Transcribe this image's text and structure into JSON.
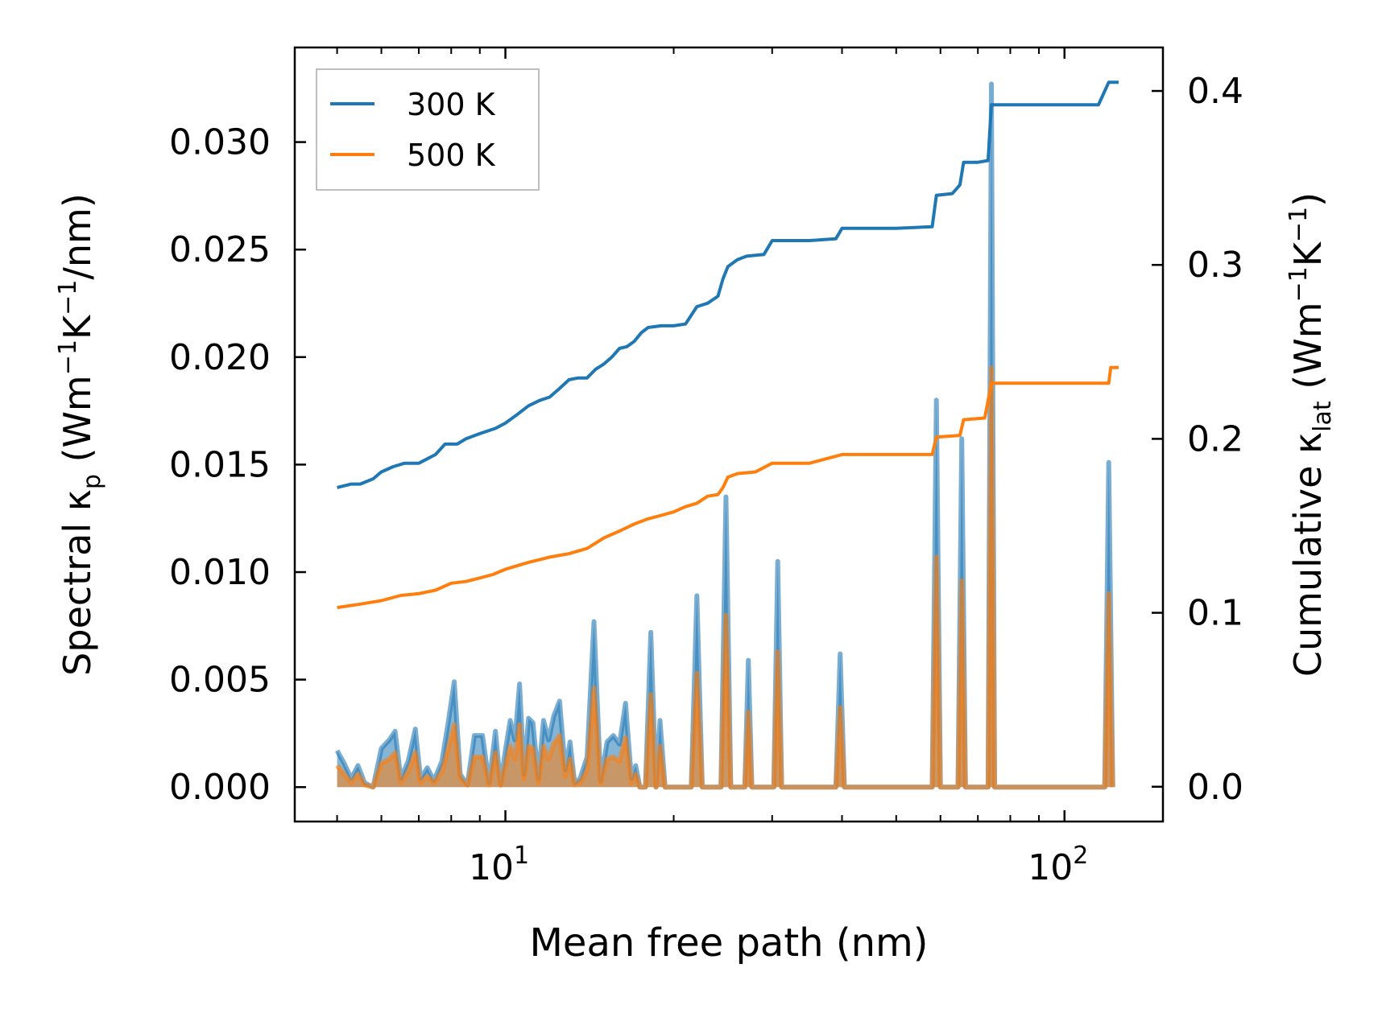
{
  "chart_data": {
    "type": "line",
    "xlabel": "Mean free path (nm)",
    "ylabel_left": "Spectral κp (Wm−1K−1/nm)",
    "ylabel_right": "Cumulative κlat (Wm−1K−1)",
    "xscale": "log",
    "xlim": [
      4.2,
      150
    ],
    "ylim_left": [
      -0.0016,
      0.0344
    ],
    "ylim_right": [
      -0.02,
      0.425
    ],
    "left_ticks": [
      "0.000",
      "0.005",
      "0.010",
      "0.015",
      "0.020",
      "0.025",
      "0.030"
    ],
    "right_ticks": [
      "0.0",
      "0.1",
      "0.2",
      "0.3",
      "0.4"
    ],
    "x_tick_labels": [
      "10",
      "10"
    ],
    "x_tick_exponents": [
      "1",
      "2"
    ],
    "legend": {
      "position": "top-left",
      "entries": [
        "300 K",
        "500 K"
      ]
    },
    "series_colors": {
      "300 K": "#1f77b4",
      "500 K": "#ff7f0e"
    },
    "cumulative": [
      {
        "name": "300 K",
        "points": [
          [
            5,
            0.172
          ],
          [
            5.3,
            0.174
          ],
          [
            5.5,
            0.174
          ],
          [
            5.8,
            0.177
          ],
          [
            6.0,
            0.181
          ],
          [
            6.3,
            0.184
          ],
          [
            6.6,
            0.186
          ],
          [
            7.0,
            0.186
          ],
          [
            7.2,
            0.188
          ],
          [
            7.5,
            0.191
          ],
          [
            7.8,
            0.197
          ],
          [
            8.2,
            0.197
          ],
          [
            8.5,
            0.2
          ],
          [
            9.0,
            0.203
          ],
          [
            9.6,
            0.206
          ],
          [
            10,
            0.209
          ],
          [
            10.5,
            0.214
          ],
          [
            11,
            0.219
          ],
          [
            11.5,
            0.222
          ],
          [
            12,
            0.224
          ],
          [
            12.5,
            0.229
          ],
          [
            13,
            0.234
          ],
          [
            13.5,
            0.235
          ],
          [
            14,
            0.235
          ],
          [
            14.5,
            0.24
          ],
          [
            15,
            0.243
          ],
          [
            15.5,
            0.247
          ],
          [
            16,
            0.252
          ],
          [
            16.5,
            0.253
          ],
          [
            17,
            0.256
          ],
          [
            17.5,
            0.261
          ],
          [
            18,
            0.264
          ],
          [
            19,
            0.265
          ],
          [
            20,
            0.265
          ],
          [
            21,
            0.266
          ],
          [
            22,
            0.276
          ],
          [
            23,
            0.278
          ],
          [
            24,
            0.282
          ],
          [
            24.5,
            0.292
          ],
          [
            25,
            0.299
          ],
          [
            26,
            0.303
          ],
          [
            27,
            0.305
          ],
          [
            29,
            0.306
          ],
          [
            30,
            0.314
          ],
          [
            35,
            0.314
          ],
          [
            39,
            0.315
          ],
          [
            40,
            0.321
          ],
          [
            50,
            0.321
          ],
          [
            58,
            0.322
          ],
          [
            59,
            0.34
          ],
          [
            63,
            0.341
          ],
          [
            65,
            0.346
          ],
          [
            66,
            0.359
          ],
          [
            70,
            0.359
          ],
          [
            73,
            0.36
          ],
          [
            74,
            0.392
          ],
          [
            115,
            0.392
          ],
          [
            120,
            0.405
          ],
          [
            125,
            0.405
          ]
        ]
      },
      {
        "name": "500 K",
        "points": [
          [
            5,
            0.103
          ],
          [
            5.5,
            0.105
          ],
          [
            6,
            0.107
          ],
          [
            6.5,
            0.11
          ],
          [
            7,
            0.111
          ],
          [
            7.5,
            0.113
          ],
          [
            8,
            0.117
          ],
          [
            8.5,
            0.118
          ],
          [
            9,
            0.12
          ],
          [
            9.5,
            0.122
          ],
          [
            10,
            0.125
          ],
          [
            11,
            0.129
          ],
          [
            12,
            0.132
          ],
          [
            13,
            0.134
          ],
          [
            14,
            0.137
          ],
          [
            15,
            0.143
          ],
          [
            16,
            0.147
          ],
          [
            17,
            0.151
          ],
          [
            18,
            0.154
          ],
          [
            19,
            0.156
          ],
          [
            20,
            0.158
          ],
          [
            21,
            0.161
          ],
          [
            22,
            0.163
          ],
          [
            23,
            0.167
          ],
          [
            24,
            0.168
          ],
          [
            24.5,
            0.172
          ],
          [
            25,
            0.178
          ],
          [
            26,
            0.18
          ],
          [
            28,
            0.181
          ],
          [
            30,
            0.186
          ],
          [
            35,
            0.186
          ],
          [
            40,
            0.191
          ],
          [
            58,
            0.191
          ],
          [
            59,
            0.201
          ],
          [
            65,
            0.202
          ],
          [
            66,
            0.211
          ],
          [
            72,
            0.212
          ],
          [
            74,
            0.232
          ],
          [
            120,
            0.232
          ],
          [
            121,
            0.241
          ],
          [
            125,
            0.241
          ]
        ]
      }
    ],
    "spectral": [
      {
        "name": "300 K",
        "points": [
          [
            5,
            0.0017
          ],
          [
            5.15,
            0.0011
          ],
          [
            5.3,
            0.0004
          ],
          [
            5.45,
            0.001
          ],
          [
            5.6,
            0.0002
          ],
          [
            5.8,
            0.0
          ],
          [
            6.0,
            0.0018
          ],
          [
            6.2,
            0.0022
          ],
          [
            6.35,
            0.0026
          ],
          [
            6.5,
            0.0004
          ],
          [
            6.7,
            0.0012
          ],
          [
            6.9,
            0.0027
          ],
          [
            7.05,
            0.0004
          ],
          [
            7.25,
            0.0009
          ],
          [
            7.45,
            0.0003
          ],
          [
            7.7,
            0.0012
          ],
          [
            7.9,
            0.003
          ],
          [
            8.1,
            0.0049
          ],
          [
            8.3,
            0.0006
          ],
          [
            8.55,
            0.0001
          ],
          [
            8.8,
            0.0024
          ],
          [
            9.1,
            0.0024
          ],
          [
            9.35,
            0.0002
          ],
          [
            9.6,
            0.0026
          ],
          [
            9.8,
            0.0001
          ],
          [
            10.0,
            0.0017
          ],
          [
            10.2,
            0.0031
          ],
          [
            10.4,
            0.0022
          ],
          [
            10.6,
            0.0048
          ],
          [
            10.8,
            0.0006
          ],
          [
            11.0,
            0.0032
          ],
          [
            11.2,
            0.003
          ],
          [
            11.45,
            0.0004
          ],
          [
            11.7,
            0.0031
          ],
          [
            11.95,
            0.0022
          ],
          [
            12.2,
            0.0033
          ],
          [
            12.5,
            0.004
          ],
          [
            12.8,
            0.0008
          ],
          [
            13.05,
            0.0021
          ],
          [
            13.3,
            0.0002
          ],
          [
            13.6,
            0.0004
          ],
          [
            14.0,
            0.0014
          ],
          [
            14.4,
            0.0077
          ],
          [
            14.8,
            0.0003
          ],
          [
            15.2,
            0.0021
          ],
          [
            15.6,
            0.0024
          ],
          [
            16.0,
            0.002
          ],
          [
            16.4,
            0.0039
          ],
          [
            16.8,
            0.0004
          ],
          [
            17.1,
            0.001
          ],
          [
            17.4,
            0.0
          ],
          [
            17.8,
            0.0
          ],
          [
            18.2,
            0.0072
          ],
          [
            18.6,
            0.0
          ],
          [
            18.9,
            0.0031
          ],
          [
            19.3,
            0.0
          ],
          [
            21.5,
            0.0
          ],
          [
            22.0,
            0.0089
          ],
          [
            22.5,
            0.0
          ],
          [
            24.3,
            0.0
          ],
          [
            24.8,
            0.0135
          ],
          [
            25.3,
            0.0
          ],
          [
            26.8,
            0.0
          ],
          [
            27.2,
            0.0059
          ],
          [
            27.6,
            0.0
          ],
          [
            30.2,
            0.0
          ],
          [
            30.7,
            0.0105
          ],
          [
            31.2,
            0.0
          ],
          [
            39.0,
            0.0
          ],
          [
            39.7,
            0.0062
          ],
          [
            40.4,
            0.0
          ],
          [
            58.0,
            0.0
          ],
          [
            59.0,
            0.018
          ],
          [
            60.0,
            0.0
          ],
          [
            64.5,
            0.0
          ],
          [
            65.5,
            0.0162
          ],
          [
            66.5,
            0.0
          ],
          [
            73.0,
            0.0
          ],
          [
            74.0,
            0.0327
          ],
          [
            75.0,
            0.0
          ],
          [
            118.0,
            0.0
          ],
          [
            120.0,
            0.0151
          ],
          [
            122.0,
            0.0
          ]
        ]
      },
      {
        "name": "500 K",
        "points": [
          [
            5,
            0.001
          ],
          [
            5.15,
            0.0006
          ],
          [
            5.3,
            0.0002
          ],
          [
            5.45,
            0.0006
          ],
          [
            5.6,
            0.0001
          ],
          [
            5.8,
            0.0
          ],
          [
            6.0,
            0.0011
          ],
          [
            6.2,
            0.0013
          ],
          [
            6.35,
            0.0016
          ],
          [
            6.5,
            0.0002
          ],
          [
            6.7,
            0.0007
          ],
          [
            6.9,
            0.0016
          ],
          [
            7.05,
            0.0002
          ],
          [
            7.25,
            0.0005
          ],
          [
            7.45,
            0.0002
          ],
          [
            7.7,
            0.0007
          ],
          [
            7.9,
            0.0018
          ],
          [
            8.1,
            0.0029
          ],
          [
            8.3,
            0.0004
          ],
          [
            8.55,
            0.0001
          ],
          [
            8.8,
            0.0014
          ],
          [
            9.1,
            0.0014
          ],
          [
            9.35,
            0.0001
          ],
          [
            9.6,
            0.0016
          ],
          [
            9.8,
            0.0001
          ],
          [
            10.0,
            0.001
          ],
          [
            10.2,
            0.0019
          ],
          [
            10.4,
            0.0013
          ],
          [
            10.6,
            0.0029
          ],
          [
            10.8,
            0.0004
          ],
          [
            11.0,
            0.0019
          ],
          [
            11.2,
            0.0018
          ],
          [
            11.45,
            0.0002
          ],
          [
            11.7,
            0.0019
          ],
          [
            11.95,
            0.0013
          ],
          [
            12.2,
            0.002
          ],
          [
            12.5,
            0.0024
          ],
          [
            12.8,
            0.0005
          ],
          [
            13.05,
            0.0013
          ],
          [
            13.3,
            0.0001
          ],
          [
            13.6,
            0.0002
          ],
          [
            14.0,
            0.0008
          ],
          [
            14.4,
            0.0046
          ],
          [
            14.8,
            0.0002
          ],
          [
            15.2,
            0.0013
          ],
          [
            15.6,
            0.0014
          ],
          [
            16.0,
            0.0012
          ],
          [
            16.4,
            0.0023
          ],
          [
            16.8,
            0.0002
          ],
          [
            17.1,
            0.0006
          ],
          [
            17.4,
            0.0
          ],
          [
            17.8,
            0.0
          ],
          [
            18.2,
            0.0043
          ],
          [
            18.6,
            0.0
          ],
          [
            18.9,
            0.0019
          ],
          [
            19.3,
            0.0
          ],
          [
            21.5,
            0.0
          ],
          [
            22.0,
            0.0053
          ],
          [
            22.5,
            0.0
          ],
          [
            24.3,
            0.0
          ],
          [
            24.8,
            0.008
          ],
          [
            25.3,
            0.0
          ],
          [
            26.8,
            0.0
          ],
          [
            27.2,
            0.0035
          ],
          [
            27.6,
            0.0
          ],
          [
            30.2,
            0.0
          ],
          [
            30.7,
            0.0063
          ],
          [
            31.2,
            0.0
          ],
          [
            39.0,
            0.0
          ],
          [
            39.7,
            0.0037
          ],
          [
            40.4,
            0.0
          ],
          [
            58.0,
            0.0
          ],
          [
            59.0,
            0.0107
          ],
          [
            60.0,
            0.0
          ],
          [
            64.5,
            0.0
          ],
          [
            65.5,
            0.0096
          ],
          [
            66.5,
            0.0
          ],
          [
            73.0,
            0.0
          ],
          [
            74.0,
            0.0195
          ],
          [
            75.0,
            0.0
          ],
          [
            118.0,
            0.0
          ],
          [
            120.0,
            0.009
          ],
          [
            122.0,
            0.0
          ]
        ]
      }
    ]
  }
}
